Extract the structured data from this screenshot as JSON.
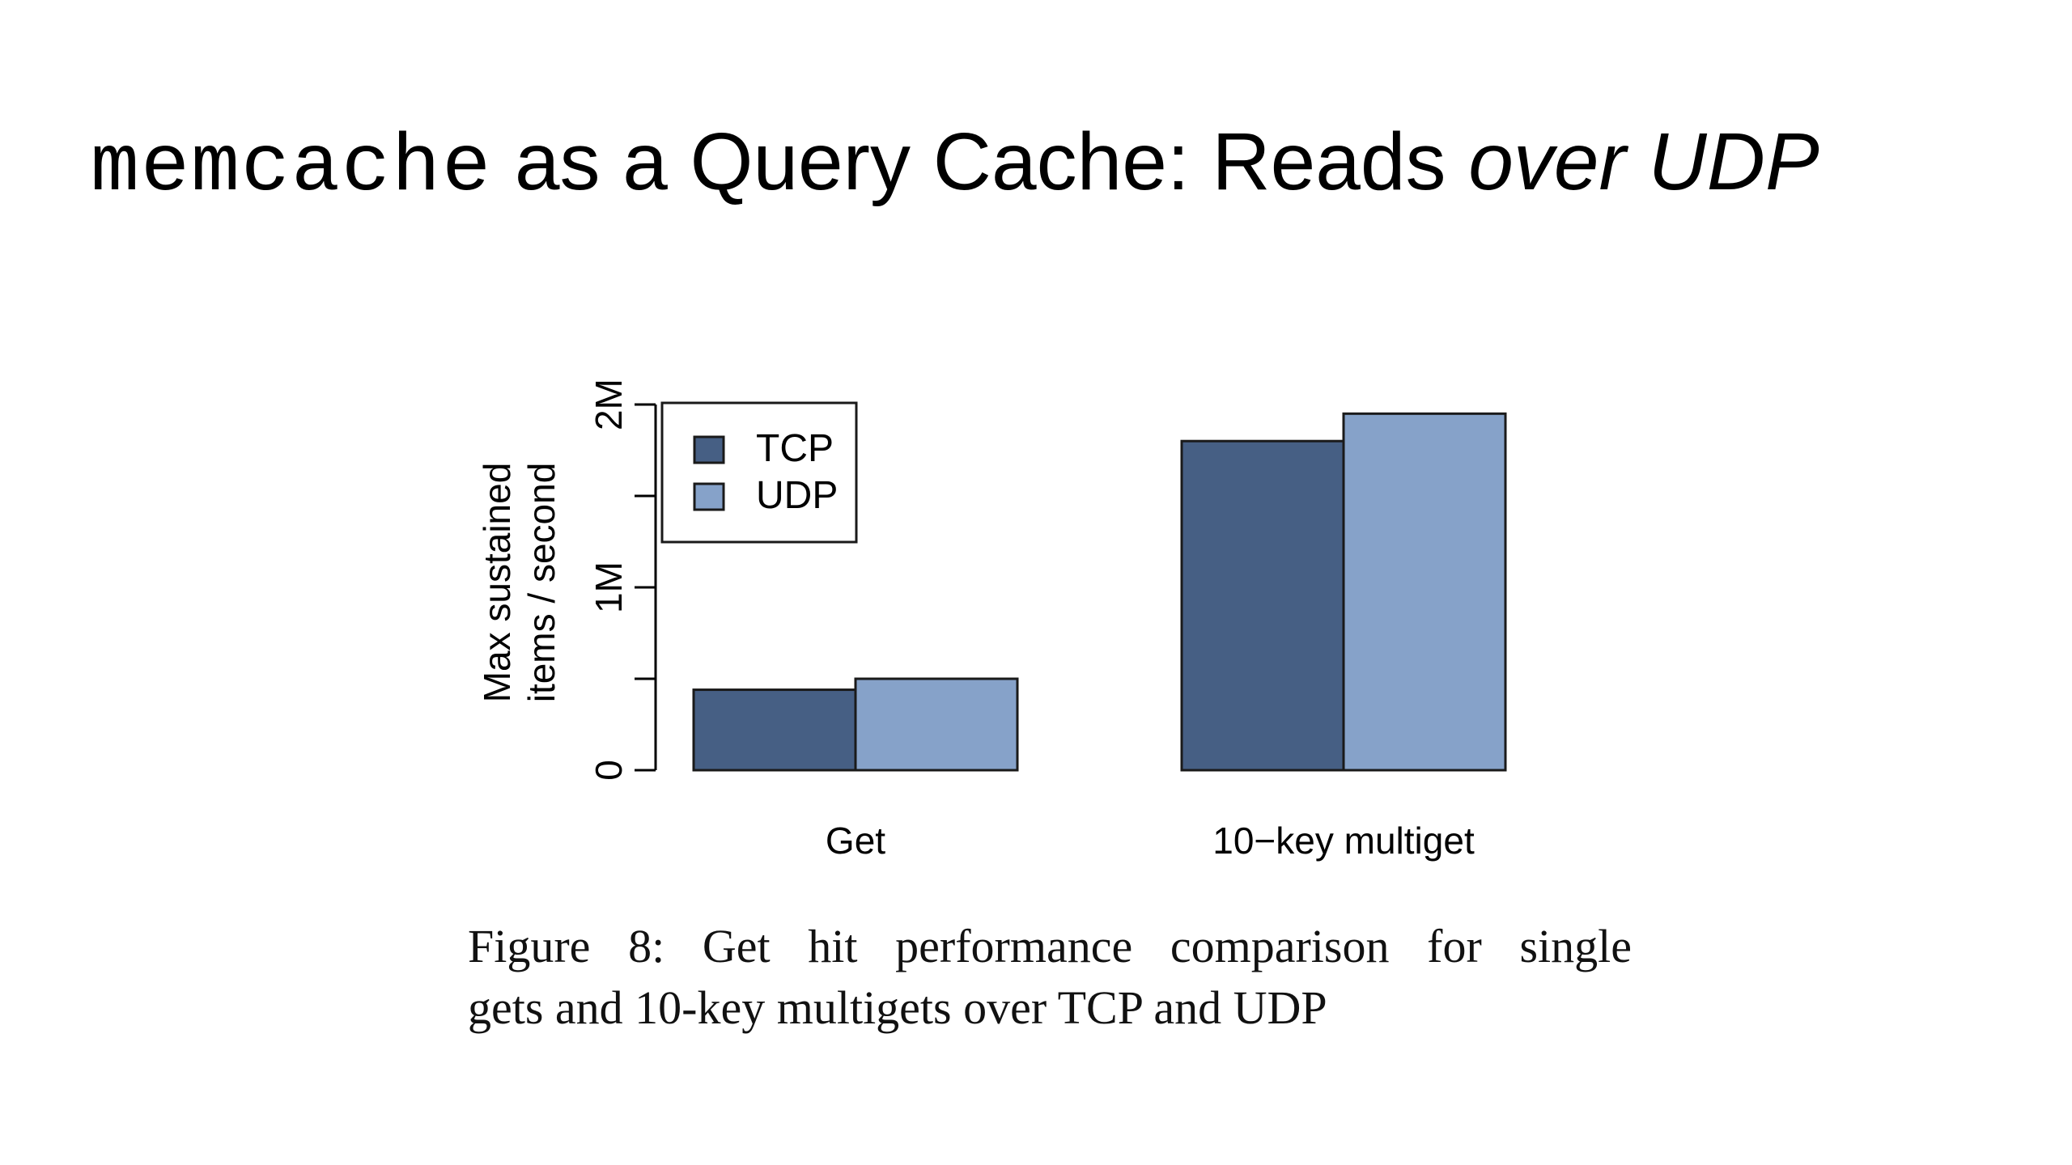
{
  "slide": {
    "title_mono": "memcache",
    "title_regular": " as a Query Cache: Reads ",
    "title_italic": "over UDP"
  },
  "caption": {
    "line1": "Figure 8: Get hit performance comparison for single",
    "line2": "gets and 10-key multigets over TCP and UDP"
  },
  "colors": {
    "tcp": "#465f84",
    "udp": "#86a2c9",
    "axis": "#000000"
  },
  "chart_data": {
    "type": "bar",
    "categories": [
      "Get",
      "10−key multiget"
    ],
    "series": [
      {
        "name": "TCP",
        "values": [
          0.44,
          1.8
        ]
      },
      {
        "name": "UDP",
        "values": [
          0.5,
          1.95
        ]
      }
    ],
    "unit": "M",
    "ylabel_line1": "Max sustained",
    "ylabel_line2": "items / second",
    "ylim": [
      0,
      2
    ],
    "yticks": [
      0,
      0.5,
      1,
      1.5,
      2
    ],
    "ytick_labels": [
      "0",
      "",
      "1M",
      "",
      "2M"
    ],
    "legend_position": "top-left",
    "grid": false
  }
}
